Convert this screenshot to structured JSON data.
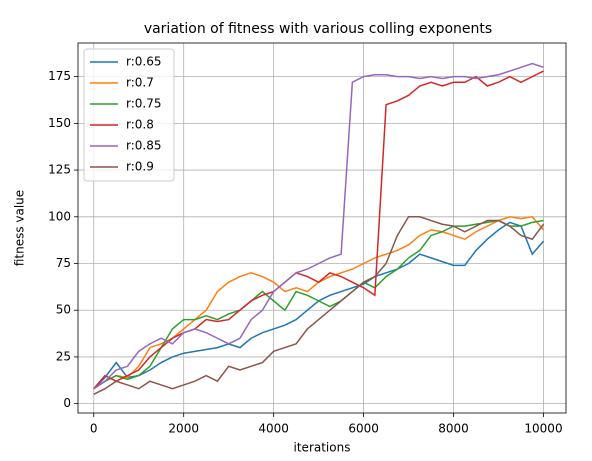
{
  "chart_data": {
    "type": "line",
    "title": "variation of fitness with various colling exponents",
    "xlabel": "iterations",
    "ylabel": "fitness value",
    "x": [
      0,
      250,
      500,
      750,
      1000,
      1250,
      1500,
      1750,
      2000,
      2250,
      2500,
      2750,
      3000,
      3250,
      3500,
      3750,
      4000,
      4250,
      4500,
      4750,
      5000,
      5250,
      5500,
      5750,
      6000,
      6250,
      6500,
      6750,
      7000,
      7250,
      7500,
      7750,
      8000,
      8250,
      8500,
      8750,
      9000,
      9250,
      9500,
      9750,
      10000
    ],
    "series": [
      {
        "name": "r:0.65",
        "color": "#1f77b4",
        "values": [
          8,
          14,
          22,
          14,
          15,
          18,
          22,
          25,
          27,
          28,
          29,
          30,
          32,
          30,
          35,
          38,
          40,
          42,
          45,
          50,
          55,
          58,
          60,
          62,
          64,
          68,
          70,
          72,
          75,
          80,
          78,
          76,
          74,
          74,
          82,
          88,
          93,
          97,
          95,
          80,
          87
        ]
      },
      {
        "name": "r:0.7",
        "color": "#ff7f0e",
        "values": [
          8,
          12,
          15,
          14,
          20,
          30,
          32,
          35,
          40,
          45,
          50,
          60,
          65,
          68,
          70,
          68,
          65,
          60,
          62,
          60,
          65,
          68,
          70,
          72,
          75,
          78,
          80,
          82,
          85,
          90,
          93,
          92,
          90,
          88,
          92,
          95,
          98,
          100,
          99,
          100,
          93
        ]
      },
      {
        "name": "r:0.75",
        "color": "#2ca02c",
        "values": [
          8,
          12,
          15,
          13,
          15,
          20,
          30,
          40,
          45,
          45,
          47,
          45,
          48,
          50,
          55,
          60,
          55,
          50,
          60,
          58,
          55,
          52,
          55,
          60,
          65,
          62,
          68,
          72,
          78,
          82,
          90,
          92,
          95,
          95,
          96,
          97,
          98,
          95,
          95,
          97,
          98
        ]
      },
      {
        "name": "r:0.8",
        "color": "#d62728",
        "values": [
          8,
          15,
          12,
          15,
          18,
          25,
          30,
          35,
          38,
          40,
          45,
          44,
          45,
          50,
          55,
          58,
          60,
          65,
          70,
          68,
          65,
          70,
          68,
          65,
          62,
          58,
          160,
          162,
          165,
          170,
          172,
          170,
          172,
          172,
          175,
          170,
          172,
          175,
          172,
          175,
          178
        ]
      },
      {
        "name": "r:0.85",
        "color": "#9467bd",
        "values": [
          8,
          12,
          18,
          20,
          28,
          32,
          35,
          32,
          38,
          40,
          38,
          35,
          32,
          35,
          45,
          50,
          60,
          65,
          70,
          72,
          75,
          78,
          80,
          172,
          175,
          176,
          176,
          175,
          175,
          174,
          175,
          174,
          175,
          175,
          174,
          175,
          176,
          178,
          180,
          182,
          180
        ]
      },
      {
        "name": "r:0.9",
        "color": "#8c564b",
        "values": [
          5,
          8,
          12,
          10,
          8,
          12,
          10,
          8,
          10,
          12,
          15,
          12,
          20,
          18,
          20,
          22,
          28,
          30,
          32,
          40,
          45,
          50,
          55,
          60,
          65,
          68,
          75,
          90,
          100,
          100,
          98,
          96,
          95,
          92,
          95,
          98,
          98,
          95,
          90,
          88,
          96
        ]
      }
    ],
    "xlim": [
      -350,
      10500
    ],
    "ylim": [
      -5,
      193
    ],
    "xticks": [
      0,
      2000,
      4000,
      6000,
      8000,
      10000
    ],
    "yticks": [
      0,
      25,
      50,
      75,
      100,
      125,
      150,
      175
    ],
    "grid": true,
    "legend": "upper left"
  }
}
